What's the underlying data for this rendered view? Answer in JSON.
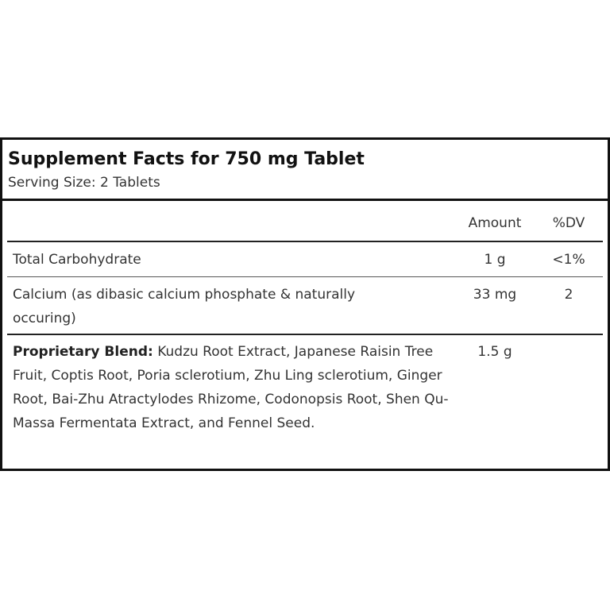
{
  "title": "Supplement Facts for 750 mg Tablet",
  "serving_size": "Serving Size: 2 Tablets",
  "columns": {
    "amount": "Amount",
    "dv": "%DV"
  },
  "rows": [
    {
      "name": "Total Carbohydrate",
      "amount": "1 g",
      "dv": "<1%"
    },
    {
      "name": "Calcium (as dibasic calcium phosphate & naturally occuring)",
      "amount": "33 mg",
      "dv": "2"
    }
  ],
  "blend": {
    "label": "Proprietary Blend:",
    "ingredients": " Kudzu Root Extract, Japanese Raisin Tree Fruit, Coptis Root, Poria sclerotium, Zhu Ling sclerotium, Ginger Root, Bai-Zhu Atractylodes Rhizome, Codonopsis Root, Shen Qu-Massa Fermentata Extract, and Fennel Seed.",
    "amount": "1.5 g"
  }
}
